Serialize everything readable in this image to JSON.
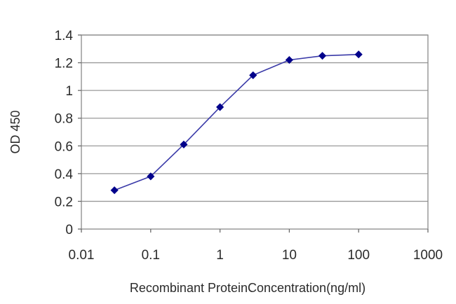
{
  "chart_data": {
    "type": "line",
    "title": "",
    "xlabel": "Recombinant ProteinConcentration(ng/ml)",
    "ylabel": "OD 450",
    "x_scale": "log",
    "xlim": [
      0.01,
      1000
    ],
    "ylim": [
      0,
      1.4
    ],
    "x_ticks": [
      "0.01",
      "0.1",
      "1",
      "10",
      "100",
      "1000"
    ],
    "y_ticks": [
      "0",
      "0.2",
      "0.4",
      "0.6",
      "0.8",
      "1",
      "1.2",
      "1.4"
    ],
    "grid": "horizontal",
    "legend": "none",
    "series": [
      {
        "color": "#00008b",
        "marker": "diamond",
        "x": [
          0.03,
          0.1,
          0.3,
          1,
          3,
          10,
          30,
          100
        ],
        "y": [
          0.28,
          0.38,
          0.61,
          0.88,
          1.11,
          1.22,
          1.25,
          1.26
        ]
      }
    ]
  }
}
